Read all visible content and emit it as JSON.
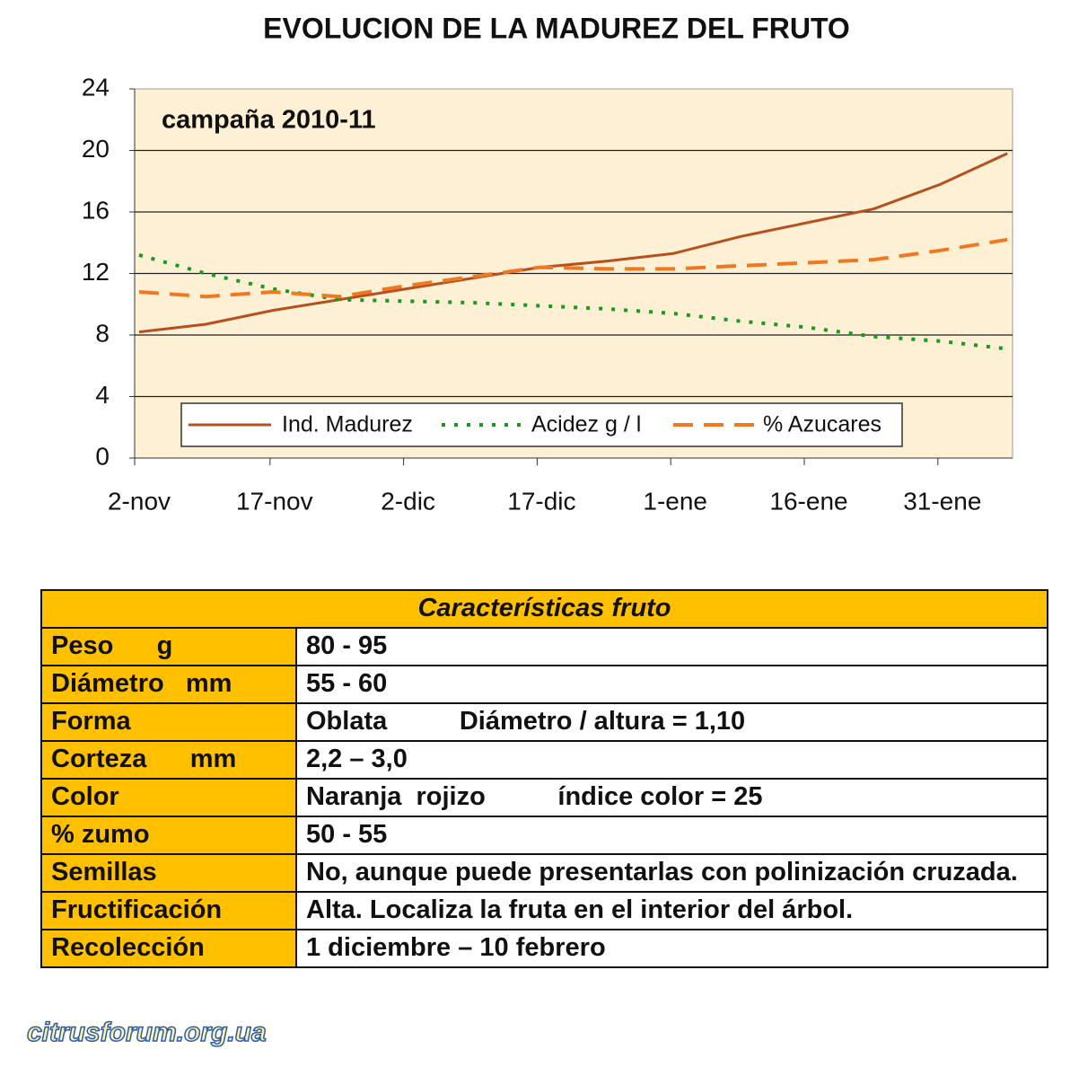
{
  "chart_data": {
    "type": "line",
    "title": "EVOLUCION DE LA MADUREZ DEL FRUTO",
    "annotation": "campaña 2010-11",
    "categories": [
      "2-nov",
      null,
      "17-nov",
      null,
      "2-dic",
      null,
      "17-dic",
      null,
      "1-ene",
      null,
      "16-ene",
      null,
      "31-ene",
      null
    ],
    "series": [
      {
        "name": "Ind. Madurez",
        "color": "#b5501f",
        "dash": "solid",
        "values": [
          8.2,
          8.7,
          9.6,
          10.3,
          11.0,
          11.7,
          12.4,
          12.8,
          13.3,
          14.4,
          15.3,
          16.2,
          17.8,
          19.8
        ]
      },
      {
        "name": "Acidez g / l",
        "color": "#1a9a1a",
        "dash": "dotted",
        "values": [
          13.2,
          12.0,
          11.0,
          10.3,
          10.2,
          10.1,
          9.9,
          9.7,
          9.4,
          8.9,
          8.5,
          7.9,
          7.6,
          7.1
        ]
      },
      {
        "name": "% Azucares",
        "color": "#f07820",
        "dash": "dashed",
        "values": [
          10.8,
          10.5,
          10.8,
          10.5,
          11.2,
          11.8,
          12.4,
          12.3,
          12.3,
          12.5,
          12.7,
          12.9,
          13.5,
          14.2
        ]
      }
    ],
    "ylim": [
      0,
      24
    ],
    "yticks": [
      0,
      4,
      8,
      12,
      16,
      20,
      24
    ],
    "grid": true,
    "legend": "bottom"
  },
  "table": {
    "title": "Características fruto",
    "rows": [
      [
        "Peso      g",
        "80 - 95"
      ],
      [
        "Diámetro   mm",
        "55 - 60"
      ],
      [
        "Forma",
        "Oblata          Diámetro / altura = 1,10"
      ],
      [
        "Corteza      mm",
        "2,2 – 3,0"
      ],
      [
        "Color",
        "Naranja  rojizo          índice color = 25"
      ],
      [
        "% zumo",
        "50 - 55"
      ],
      [
        "Semillas",
        "No, aunque puede presentarlas con polinización cruzada."
      ],
      [
        "Fructificación",
        "Alta. Localiza la fruta en el interior del árbol."
      ],
      [
        "Recolección",
        "1 diciembre – 10 febrero"
      ]
    ]
  },
  "footer": "citrusforum.org.ua"
}
